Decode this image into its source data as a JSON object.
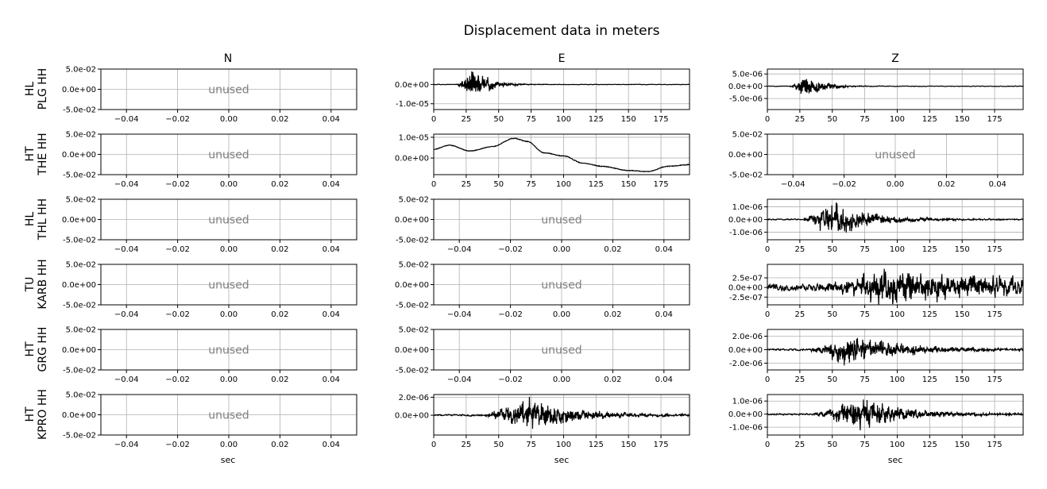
{
  "title": "Displacement data in meters",
  "columns": [
    "N",
    "E",
    "Z"
  ],
  "rows": [
    {
      "label_1": "HL",
      "label_2": "PLG HH"
    },
    {
      "label_1": "HT",
      "label_2": "THE HH"
    },
    {
      "label_1": "HL",
      "label_2": "THL HH"
    },
    {
      "label_1": "TU",
      "label_2": "KARB HH"
    },
    {
      "label_1": "HT",
      "label_2": "GRG HH"
    },
    {
      "label_1": "HT",
      "label_2": "KPRO HH"
    }
  ],
  "xlabel": "sec",
  "unused_text": "unused",
  "colors": {
    "trace": "#000000",
    "grid": "#b0b0b0",
    "unused": "#808080"
  },
  "chart_data": {
    "type": "line",
    "grid": true,
    "unused_axes": {
      "xlim": [
        -0.05,
        0.05
      ],
      "ylim": [
        -0.05,
        0.05
      ],
      "xticks": [
        -0.04,
        -0.02,
        0.0,
        0.02,
        0.04
      ],
      "xtick_labels": [
        "−0.04",
        "−0.02",
        "0.00",
        "0.02",
        "0.04"
      ],
      "yticks": [
        0.05,
        0.0,
        -0.05
      ],
      "ytick_labels": [
        "5.0e-02",
        "0.0e+00",
        "-5.0e-02"
      ]
    },
    "time_xticks": [
      0,
      25,
      50,
      75,
      100,
      125,
      150,
      175
    ],
    "panels": [
      {
        "row": 0,
        "col": 0,
        "used": false
      },
      {
        "row": 0,
        "col": 1,
        "used": true,
        "xlim": [
          0,
          197
        ],
        "ylim": [
          -1.3e-05,
          8e-06
        ],
        "yticks": [
          0,
          -1e-05
        ],
        "ytick_labels": [
          "0.0e+00",
          "-1.0e-05"
        ],
        "signal": {
          "kind": "burst",
          "onset": 17,
          "center": 30,
          "decay": 12,
          "peak": 9e-06,
          "noise": 2e-07,
          "freq": 1.2,
          "seed": 11
        }
      },
      {
        "row": 0,
        "col": 2,
        "used": true,
        "xlim": [
          0,
          197
        ],
        "ylim": [
          -9.5e-06,
          7e-06
        ],
        "yticks": [
          5e-06,
          0,
          -5e-06
        ],
        "ytick_labels": [
          "5.0e-06",
          "0.0e+00",
          "-5.0e-06"
        ],
        "signal": {
          "kind": "burst",
          "onset": 17,
          "center": 30,
          "decay": 12,
          "peak": 5.5e-06,
          "noise": 2e-07,
          "freq": 1.3,
          "seed": 12
        }
      },
      {
        "row": 1,
        "col": 0,
        "used": false
      },
      {
        "row": 1,
        "col": 1,
        "used": true,
        "xlim": [
          0,
          197
        ],
        "ylim": [
          -8e-06,
          1.15e-05
        ],
        "yticks": [
          1e-05,
          0
        ],
        "ytick_labels": [
          "1.0e-05",
          "0.0e+00"
        ],
        "signal": {
          "kind": "drift",
          "noise": 1.5e-07,
          "seed": 21,
          "points": [
            [
              0,
              4.2e-06
            ],
            [
              12,
              6.2e-06
            ],
            [
              28,
              3.4e-06
            ],
            [
              45,
              5.5e-06
            ],
            [
              62,
              9.5e-06
            ],
            [
              72,
              8e-06
            ],
            [
              85,
              2.5e-06
            ],
            [
              100,
              1e-06
            ],
            [
              115,
              -2.5e-06
            ],
            [
              130,
              -4e-06
            ],
            [
              150,
              -6e-06
            ],
            [
              165,
              -6.5e-06
            ],
            [
              180,
              -4e-06
            ],
            [
              197,
              -3.2e-06
            ]
          ]
        }
      },
      {
        "row": 1,
        "col": 2,
        "used": false
      },
      {
        "row": 2,
        "col": 0,
        "used": false
      },
      {
        "row": 2,
        "col": 1,
        "used": false
      },
      {
        "row": 2,
        "col": 2,
        "used": true,
        "xlim": [
          0,
          197
        ],
        "ylim": [
          -1.6e-06,
          1.6e-06
        ],
        "yticks": [
          1e-06,
          0,
          -1e-06
        ],
        "ytick_labels": [
          "1.0e-06",
          "0.0e+00",
          "-1.0e-06"
        ],
        "signal": {
          "kind": "burst",
          "onset": 25,
          "center": 50,
          "decay": 30,
          "peak": 1.4e-06,
          "noise": 8e-08,
          "freq": 1.5,
          "seed": 31
        }
      },
      {
        "row": 3,
        "col": 0,
        "used": false
      },
      {
        "row": 3,
        "col": 1,
        "used": false
      },
      {
        "row": 3,
        "col": 2,
        "used": true,
        "xlim": [
          0,
          197
        ],
        "ylim": [
          -4.5e-07,
          6e-07
        ],
        "yticks": [
          2.5e-07,
          0,
          -2.5e-07
        ],
        "ytick_labels": [
          "2.5e-07",
          "0.0e+00",
          "-2.5e-07"
        ],
        "signal": {
          "kind": "burst",
          "onset": 30,
          "center": 90,
          "decay": 150,
          "peak": 4.2e-07,
          "noise": 1.3e-07,
          "freq": 1.0,
          "seed": 41
        }
      },
      {
        "row": 4,
        "col": 0,
        "used": false
      },
      {
        "row": 4,
        "col": 1,
        "used": false
      },
      {
        "row": 4,
        "col": 2,
        "used": true,
        "xlim": [
          0,
          197
        ],
        "ylim": [
          -3e-06,
          3e-06
        ],
        "yticks": [
          2e-06,
          0,
          -2e-06
        ],
        "ytick_labels": [
          "2.0e-06",
          "0.0e+00",
          "-2.0e-06"
        ],
        "signal": {
          "kind": "burst",
          "onset": 30,
          "center": 60,
          "decay": 45,
          "peak": 2.3e-06,
          "noise": 2e-07,
          "freq": 1.5,
          "seed": 51
        }
      },
      {
        "row": 5,
        "col": 0,
        "used": false
      },
      {
        "row": 5,
        "col": 1,
        "used": true,
        "xlim": [
          0,
          197
        ],
        "ylim": [
          -2.2e-06,
          2.3e-06
        ],
        "yticks": [
          2e-06,
          0
        ],
        "ytick_labels": [
          "2.0e-06",
          "0.0e+00"
        ],
        "signal": {
          "kind": "burst",
          "onset": 35,
          "center": 73,
          "decay": 35,
          "peak": 1.9e-06,
          "noise": 1.5e-07,
          "freq": 1.4,
          "seed": 61
        }
      },
      {
        "row": 5,
        "col": 2,
        "used": true,
        "xlim": [
          0,
          197
        ],
        "ylim": [
          -1.6e-06,
          1.5e-06
        ],
        "yticks": [
          1e-06,
          0,
          -1e-06
        ],
        "ytick_labels": [
          "1.0e-06",
          "0.0e+00",
          "-1.0e-06"
        ],
        "signal": {
          "kind": "burst",
          "onset": 33,
          "center": 73,
          "decay": 35,
          "peak": 1.3e-06,
          "noise": 1e-07,
          "freq": 1.4,
          "seed": 62
        }
      }
    ]
  }
}
